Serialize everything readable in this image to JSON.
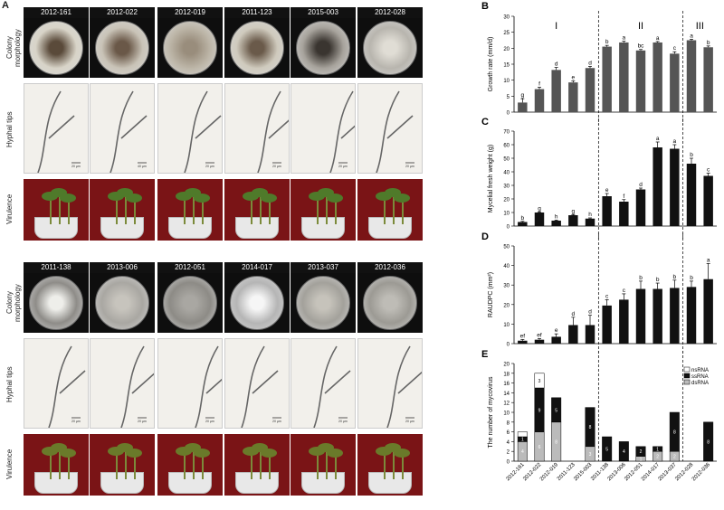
{
  "panel_letters": {
    "A": "A",
    "B": "B",
    "C": "C",
    "D": "D",
    "E": "E"
  },
  "row_labels": {
    "colony": "Colony morphology",
    "hyphal": "Hyphal tips",
    "virulence": "Virulence"
  },
  "group1_strains": [
    "2012-161",
    "2012-022",
    "2012-019",
    "2011-123",
    "2015-003",
    "2012-028"
  ],
  "group2_strains": [
    "2011-138",
    "2013-006",
    "2012-051",
    "2014-017",
    "2013-037",
    "2012-036"
  ],
  "scale_labels": [
    "20 µm",
    "40 µm",
    "20 µm",
    "20 µm",
    "20 µm",
    "20 µm",
    "20 µm",
    "20 µm",
    "20 µm",
    "20 µm",
    "20 µm",
    "20 µm"
  ],
  "colors": {
    "bar_gray": "#555555",
    "bar_black": "#111111",
    "ss_gray": "#bbbbbb",
    "background_red": "#7a1416"
  },
  "chart_data": [
    {
      "type": "bar",
      "panel": "B",
      "ylabel": "Growth rate (mm/d)",
      "ylim": [
        0,
        30
      ],
      "yticks": [
        0,
        5,
        10,
        15,
        20,
        25,
        30
      ],
      "categories": [
        "2012-161",
        "2012-022",
        "2012-019",
        "2011-123",
        "2015-003",
        "2012-028",
        "2011-138",
        "2013-006",
        "2012-051",
        "2014-017",
        "2013-037",
        "2012-036"
      ],
      "order": [
        "2012-161",
        "2012-022",
        "2012-019",
        "2011-123",
        "2015-003",
        "2011-138",
        "2013-006",
        "2012-051",
        "2014-017",
        "2013-037",
        "2012-028",
        "2012-036"
      ],
      "values": [
        3.0,
        7.2,
        13.2,
        9.3,
        13.8,
        20.5,
        21.8,
        19.3,
        21.8,
        18.3,
        22.5,
        20.3
      ],
      "errors": [
        1.2,
        0.6,
        0.8,
        0.5,
        0.5,
        0.4,
        0.4,
        0.3,
        0.3,
        0.6,
        0.3,
        0.4
      ],
      "letters": [
        "g",
        "f",
        "d",
        "e",
        "d",
        "b",
        "a",
        "bc",
        "a",
        "c",
        "a",
        "b"
      ],
      "groups": [
        "I",
        "II",
        "III"
      ]
    },
    {
      "type": "bar",
      "panel": "C",
      "ylabel": "Mycelial fresh weight (g)",
      "ylim": [
        0,
        70
      ],
      "yticks": [
        0,
        10,
        20,
        30,
        40,
        50,
        60,
        70
      ],
      "values": [
        3.0,
        10.0,
        4.0,
        8.0,
        5.5,
        22.0,
        18.0,
        27.0,
        58.0,
        57.0,
        46.0,
        37.0
      ],
      "errors": [
        0.5,
        0.5,
        0.4,
        0.5,
        0.5,
        2.0,
        1.5,
        1.0,
        4.0,
        3.0,
        4.0,
        2.0
      ],
      "letters": [
        "b",
        "g",
        "h",
        "g",
        "h",
        "e",
        "f",
        "d",
        "a",
        "a",
        "b",
        "c"
      ]
    },
    {
      "type": "bar",
      "panel": "D",
      "ylabel": "RAUDPC (mm²)",
      "ylim": [
        0,
        50
      ],
      "yticks": [
        0,
        10,
        20,
        30,
        40,
        50
      ],
      "values": [
        1.5,
        2.0,
        3.5,
        9.5,
        9.5,
        19.5,
        22.5,
        28.0,
        28.0,
        28.5,
        29.0,
        33.0
      ],
      "errors": [
        0.6,
        0.6,
        1.5,
        4.0,
        5.0,
        3.0,
        3.0,
        4.0,
        3.0,
        4.0,
        3.0,
        8.0
      ],
      "letters": [
        "ef",
        "ef",
        "e",
        "d",
        "d",
        "c",
        "c",
        "b",
        "b",
        "b",
        "b",
        "a"
      ]
    },
    {
      "type": "bar",
      "panel": "E",
      "ylabel": "The number of mycovirus",
      "ylim": [
        0,
        20
      ],
      "yticks": [
        0,
        2,
        4,
        6,
        8,
        10,
        12,
        14,
        16,
        18,
        20
      ],
      "series": [
        {
          "name": "dsRNA",
          "values": [
            4,
            6,
            8,
            0,
            3,
            0,
            0,
            1,
            2,
            2,
            0,
            0
          ]
        },
        {
          "name": "ssRNA",
          "values": [
            1,
            9,
            5,
            0,
            8,
            5,
            4,
            2,
            1,
            8,
            0,
            8
          ]
        },
        {
          "name": "nsRNA",
          "values": [
            1,
            3,
            0,
            0,
            0,
            0,
            0,
            0,
            0,
            0,
            0,
            0
          ]
        }
      ],
      "segment_labels": [
        [
          "4",
          "1",
          ""
        ],
        [
          "6",
          "9",
          "3"
        ],
        [
          "8",
          "5",
          ""
        ],
        [
          "",
          "",
          ""
        ],
        [
          "3",
          "8",
          ""
        ],
        [
          "",
          "5",
          ""
        ],
        [
          "",
          "4",
          ""
        ],
        [
          "1",
          "2",
          ""
        ],
        [
          "2",
          "1",
          ""
        ],
        [
          "2",
          "8",
          ""
        ],
        [
          "",
          "",
          ""
        ],
        [
          "",
          "8",
          ""
        ]
      ],
      "legend": [
        "nsRNA",
        "ssRNA",
        "dsRNA"
      ]
    }
  ]
}
